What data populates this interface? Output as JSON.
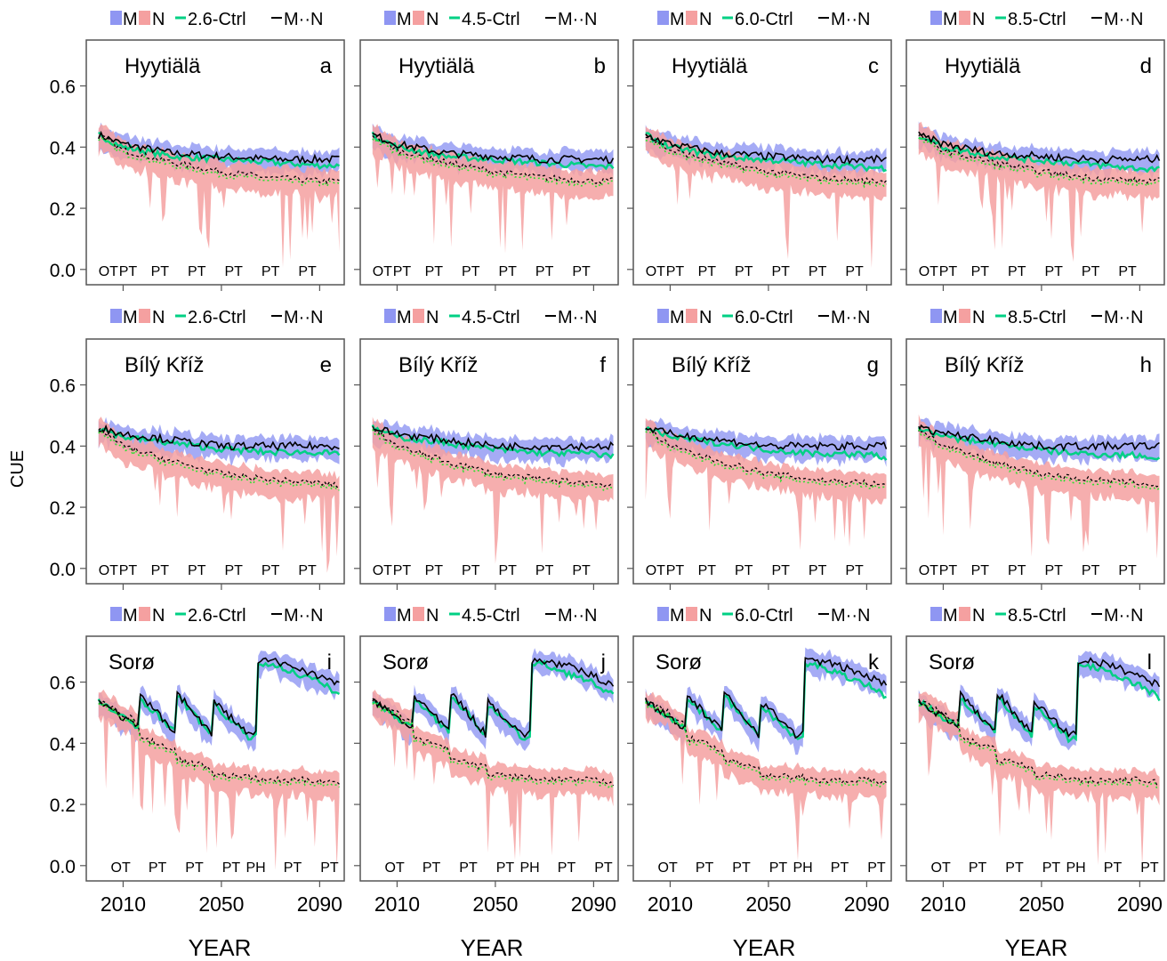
{
  "chart_data": {
    "type": "line",
    "ylabel": "CUE",
    "xlabel": "YEAR",
    "xlim": [
      1995,
      2100
    ],
    "ylim": [
      -0.05,
      0.75
    ],
    "xticks": [
      2010,
      2050,
      2090
    ],
    "yticks": [
      "0.0",
      "0.2",
      "0.4",
      "0.6"
    ],
    "colors": {
      "M_band": "#8f96f2",
      "N_band": "#f5a0a0",
      "ctrl": "#00d084",
      "M_line": "#000000",
      "N_dotted": "#33dd33"
    },
    "legend_placement": "top",
    "scenarios": [
      {
        "legend": {
          "band_m": "M",
          "band_n": "N",
          "ctrl": "2.6-Ctrl",
          "mn": "M··N"
        }
      },
      {
        "legend": {
          "band_m": "M",
          "band_n": "N",
          "ctrl": "4.5-Ctrl",
          "mn": "M··N"
        }
      },
      {
        "legend": {
          "band_m": "M",
          "band_n": "N",
          "ctrl": "6.0-Ctrl",
          "mn": "M··N"
        }
      },
      {
        "legend": {
          "band_m": "M",
          "band_n": "N",
          "ctrl": "8.5-Ctrl",
          "mn": "M··N"
        }
      }
    ],
    "sites": [
      {
        "name": "Hyytiälä",
        "panels": [
          "a",
          "b",
          "c",
          "d"
        ],
        "events": [
          {
            "label": "OT",
            "x": 2004
          },
          {
            "label": "PT",
            "x": 2012
          },
          {
            "label": "PT",
            "x": 2025
          },
          {
            "label": "PT",
            "x": 2040
          },
          {
            "label": "PT",
            "x": 2055
          },
          {
            "label": "PT",
            "x": 2070
          },
          {
            "label": "PT",
            "x": 2085
          }
        ],
        "M_x": [
          2000,
          2010,
          2030,
          2050,
          2070,
          2090,
          2098
        ],
        "M_y": [
          0.44,
          0.41,
          0.38,
          0.37,
          0.36,
          0.36,
          0.36
        ],
        "ctrl_y": [
          0.44,
          0.4,
          0.37,
          0.36,
          0.35,
          0.34,
          0.34
        ],
        "N_y": [
          0.44,
          0.39,
          0.35,
          0.32,
          0.3,
          0.29,
          0.29
        ]
      },
      {
        "name": "Bílý Kříž",
        "panels": [
          "e",
          "f",
          "g",
          "h"
        ],
        "events": [
          {
            "label": "OT",
            "x": 2004
          },
          {
            "label": "PT",
            "x": 2012
          },
          {
            "label": "PT",
            "x": 2025
          },
          {
            "label": "PT",
            "x": 2040
          },
          {
            "label": "PT",
            "x": 2055
          },
          {
            "label": "PT",
            "x": 2070
          },
          {
            "label": "PT",
            "x": 2085
          }
        ],
        "M_x": [
          2000,
          2010,
          2030,
          2050,
          2070,
          2090,
          2098
        ],
        "M_y": [
          0.46,
          0.44,
          0.42,
          0.4,
          0.4,
          0.4,
          0.4
        ],
        "ctrl_y": [
          0.46,
          0.43,
          0.41,
          0.39,
          0.38,
          0.38,
          0.37
        ],
        "N_y": [
          0.46,
          0.4,
          0.35,
          0.31,
          0.29,
          0.28,
          0.27
        ]
      },
      {
        "name": "Sorø",
        "panels": [
          "i",
          "j",
          "k",
          "l"
        ],
        "events": [
          {
            "label": "OT",
            "x": 2009
          },
          {
            "label": "PT",
            "x": 2024
          },
          {
            "label": "PT",
            "x": 2039
          },
          {
            "label": "PT",
            "x": 2054
          },
          {
            "label": "PH",
            "x": 2064
          },
          {
            "label": "PT",
            "x": 2079
          },
          {
            "label": "PT",
            "x": 2094
          }
        ],
        "M_x": [
          2000,
          2016,
          2016.5,
          2031,
          2031.5,
          2046,
          2046.5,
          2061,
          2064,
          2064.5,
          2070,
          2080,
          2090,
          2098
        ],
        "M_y": [
          0.54,
          0.45,
          0.56,
          0.44,
          0.57,
          0.43,
          0.54,
          0.43,
          0.43,
          0.67,
          0.67,
          0.65,
          0.62,
          0.59
        ],
        "ctrl_y": [
          0.54,
          0.45,
          0.55,
          0.44,
          0.56,
          0.43,
          0.53,
          0.42,
          0.42,
          0.66,
          0.66,
          0.63,
          0.6,
          0.56
        ],
        "N_y": [
          0.54,
          0.47,
          0.42,
          0.38,
          0.35,
          0.32,
          0.3,
          0.29,
          0.29,
          0.28,
          0.28,
          0.28,
          0.28,
          0.27
        ]
      }
    ]
  }
}
